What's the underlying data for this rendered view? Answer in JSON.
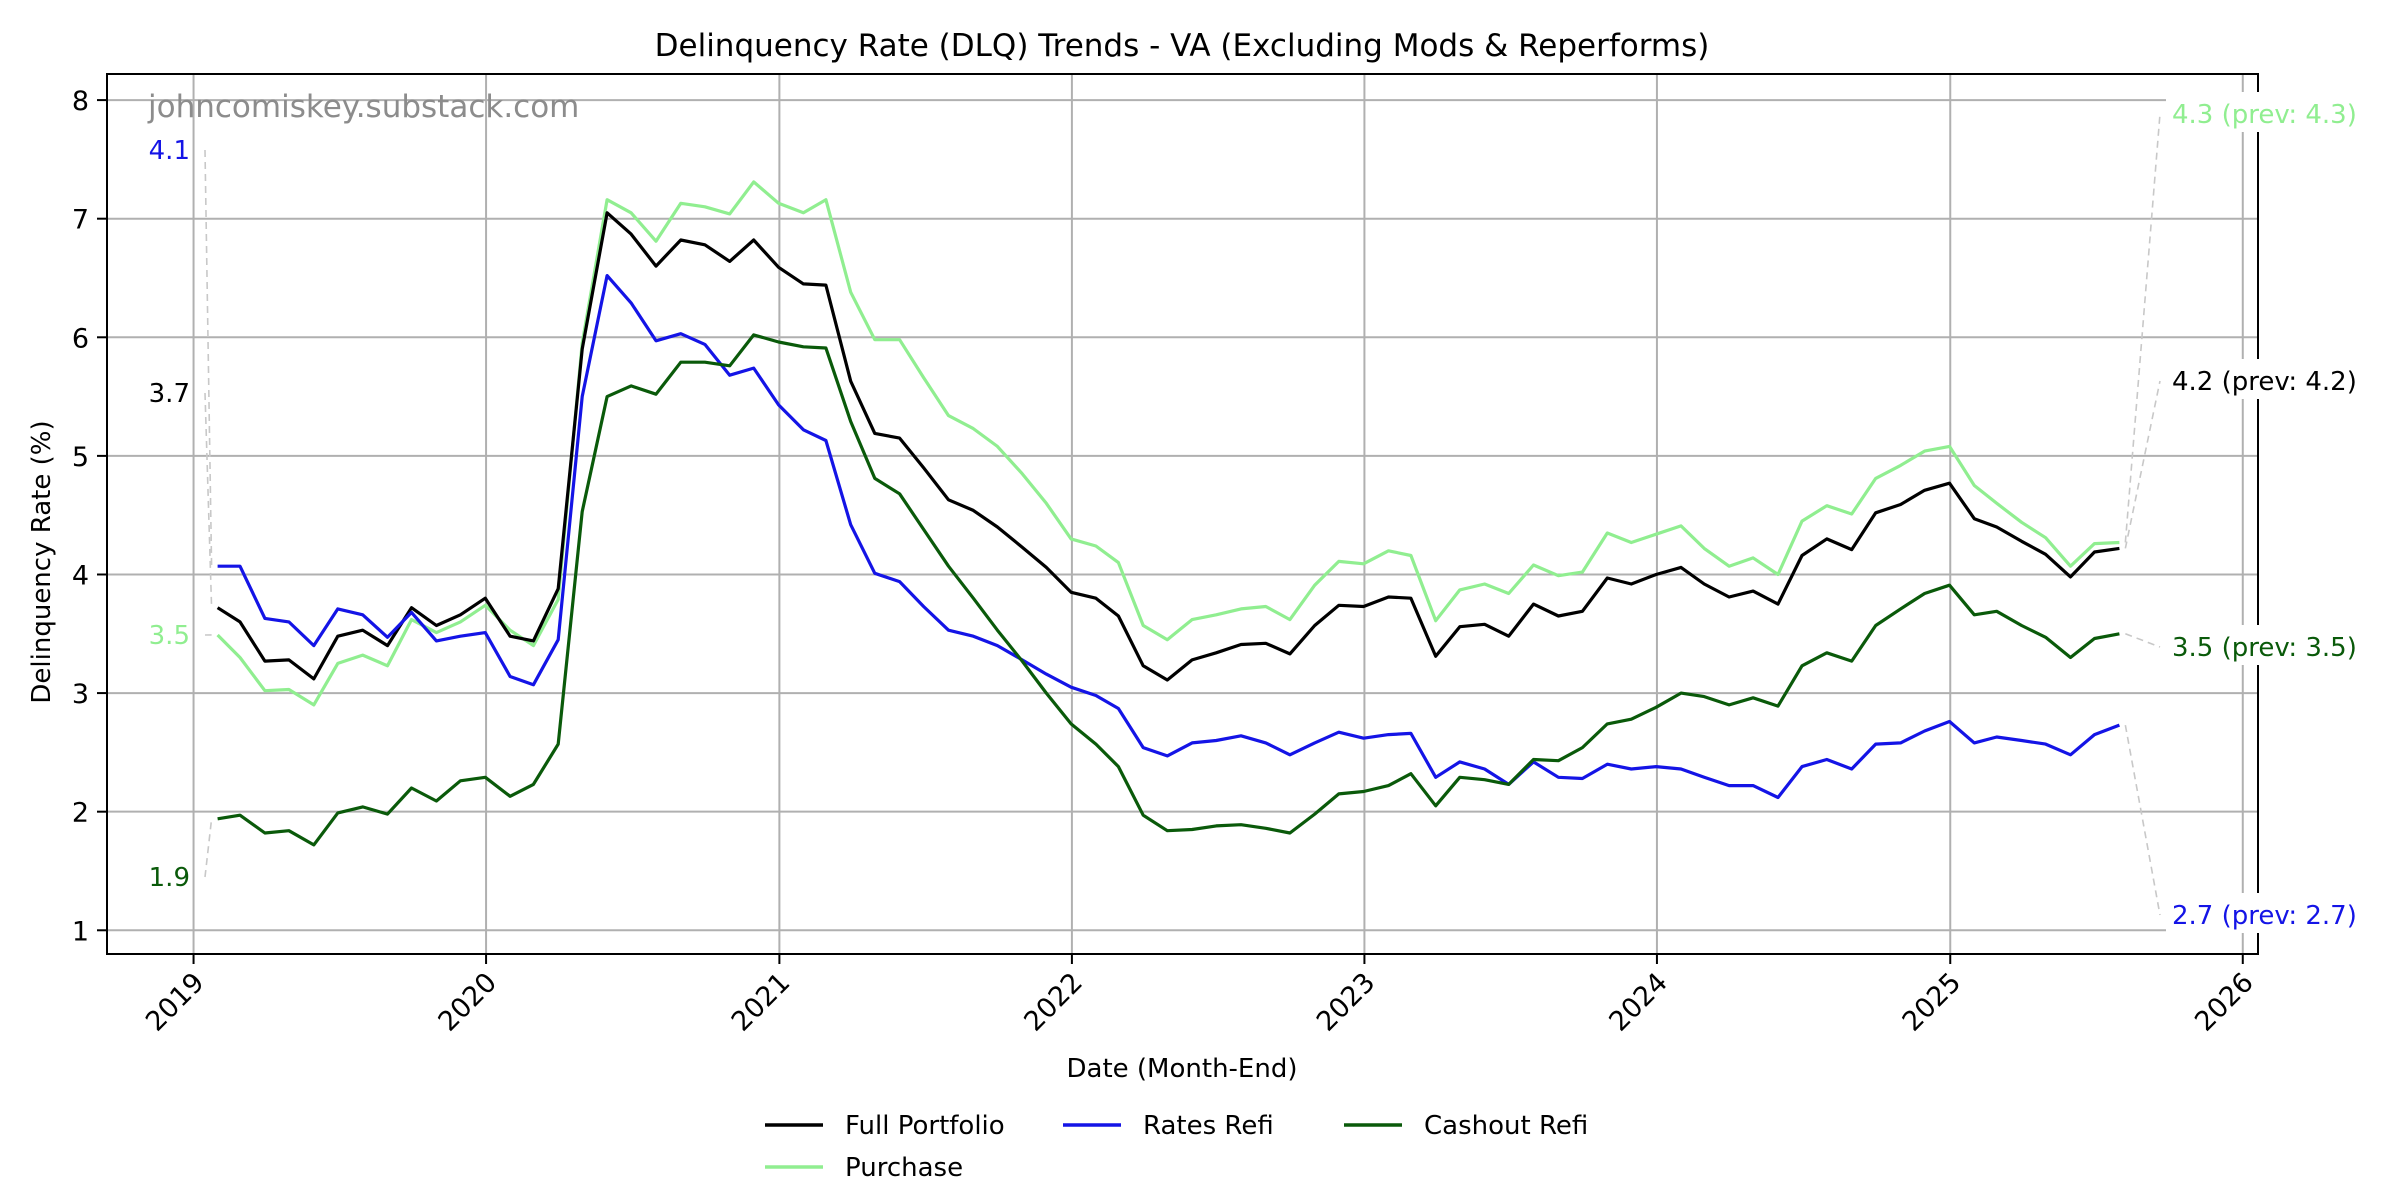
{
  "chart_data": {
    "type": "line",
    "title": "Delinquency Rate (DLQ) Trends - VA (Excluding Mods & Reperforms)",
    "xlabel": "Date (Month-End)",
    "ylabel": "Delinquency Rate (%)",
    "watermark": "johncomiskey.substack.com",
    "x_start": "2019-01-31",
    "x_end": "2025-07-31",
    "x_frequency": "month-end",
    "xlim": [
      "2018-09-15",
      "2026-01-20"
    ],
    "ylim": [
      0.8,
      8.22
    ],
    "xticks": [
      "2019",
      "2020",
      "2021",
      "2022",
      "2023",
      "2024",
      "2025",
      "2026"
    ],
    "yticks": [
      1,
      2,
      3,
      4,
      5,
      6,
      7,
      8
    ],
    "grid": true,
    "legend": {
      "placement": "bottom-center",
      "entries": [
        "Full Portfolio",
        "Rates Refi",
        "Cashout Refi",
        "Purchase"
      ]
    },
    "series": [
      {
        "name": "Full Portfolio",
        "color": "#000000",
        "start_label": "3.7",
        "end_label": "4.2 (prev: 4.2)",
        "values": [
          3.72,
          3.6,
          3.27,
          3.28,
          3.12,
          3.48,
          3.53,
          3.4,
          3.72,
          3.57,
          3.66,
          3.8,
          3.48,
          3.44,
          3.88,
          5.9,
          7.05,
          6.87,
          6.6,
          6.82,
          6.78,
          6.64,
          6.82,
          6.59,
          6.45,
          6.44,
          5.63,
          5.19,
          5.15,
          4.9,
          4.63,
          4.54,
          4.4,
          4.23,
          4.06,
          3.85,
          3.8,
          3.65,
          3.23,
          3.11,
          3.28,
          3.34,
          3.41,
          3.42,
          3.33,
          3.57,
          3.74,
          3.73,
          3.81,
          3.8,
          3.31,
          3.56,
          3.58,
          3.48,
          3.75,
          3.65,
          3.69,
          3.97,
          3.92,
          4.0,
          4.06,
          3.92,
          3.81,
          3.86,
          3.75,
          4.16,
          4.3,
          4.21,
          4.52,
          4.59,
          4.71,
          4.77,
          4.47,
          4.4,
          4.28,
          4.17,
          3.98,
          4.19,
          4.22
        ]
      },
      {
        "name": "Rates Refi",
        "color": "#1414e6",
        "start_label": "4.1",
        "end_label": "2.7 (prev: 2.7)",
        "values": [
          4.07,
          4.07,
          3.63,
          3.6,
          3.4,
          3.71,
          3.66,
          3.47,
          3.68,
          3.44,
          3.48,
          3.51,
          3.14,
          3.07,
          3.45,
          5.5,
          6.52,
          6.29,
          5.97,
          6.03,
          5.94,
          5.68,
          5.74,
          5.43,
          5.22,
          5.13,
          4.42,
          4.01,
          3.94,
          3.73,
          3.53,
          3.48,
          3.4,
          3.28,
          3.16,
          3.05,
          2.98,
          2.87,
          2.54,
          2.47,
          2.58,
          2.6,
          2.64,
          2.58,
          2.48,
          2.58,
          2.67,
          2.62,
          2.65,
          2.66,
          2.29,
          2.42,
          2.36,
          2.23,
          2.42,
          2.29,
          2.28,
          2.4,
          2.36,
          2.38,
          2.36,
          2.29,
          2.22,
          2.22,
          2.12,
          2.38,
          2.44,
          2.36,
          2.57,
          2.58,
          2.68,
          2.76,
          2.58,
          2.63,
          2.6,
          2.57,
          2.48,
          2.65,
          2.73
        ]
      },
      {
        "name": "Cashout Refi",
        "color": "#0a5a0a",
        "start_label": "1.9",
        "end_label": "3.5 (prev: 3.5)",
        "values": [
          1.94,
          1.97,
          1.82,
          1.84,
          1.72,
          1.99,
          2.04,
          1.98,
          2.2,
          2.09,
          2.26,
          2.29,
          2.13,
          2.23,
          2.57,
          4.53,
          5.5,
          5.59,
          5.52,
          5.79,
          5.79,
          5.76,
          6.02,
          5.96,
          5.92,
          5.91,
          5.29,
          4.81,
          4.68,
          4.38,
          4.07,
          3.8,
          3.53,
          3.27,
          3.0,
          2.74,
          2.57,
          2.38,
          1.97,
          1.84,
          1.85,
          1.88,
          1.89,
          1.86,
          1.82,
          1.98,
          2.15,
          2.17,
          2.22,
          2.32,
          2.05,
          2.29,
          2.27,
          2.23,
          2.44,
          2.43,
          2.54,
          2.74,
          2.78,
          2.88,
          3.0,
          2.97,
          2.9,
          2.96,
          2.89,
          3.23,
          3.34,
          3.27,
          3.57,
          3.71,
          3.84,
          3.91,
          3.66,
          3.69,
          3.57,
          3.47,
          3.3,
          3.46,
          3.5
        ]
      },
      {
        "name": "Purchase",
        "color": "#90ee90",
        "start_label": "3.5",
        "end_label": "4.3 (prev: 4.3)",
        "values": [
          3.49,
          3.3,
          3.02,
          3.03,
          2.9,
          3.25,
          3.32,
          3.23,
          3.62,
          3.51,
          3.6,
          3.74,
          3.53,
          3.4,
          3.79,
          5.95,
          7.16,
          7.05,
          6.81,
          7.13,
          7.1,
          7.04,
          7.31,
          7.13,
          7.05,
          7.16,
          6.38,
          5.98,
          5.98,
          5.66,
          5.34,
          5.23,
          5.08,
          4.85,
          4.6,
          4.3,
          4.24,
          4.1,
          3.57,
          3.45,
          3.62,
          3.66,
          3.71,
          3.73,
          3.62,
          3.91,
          4.11,
          4.09,
          4.2,
          4.16,
          3.61,
          3.87,
          3.92,
          3.84,
          4.08,
          3.99,
          4.02,
          4.35,
          4.27,
          4.34,
          4.41,
          4.22,
          4.07,
          4.14,
          4.0,
          4.45,
          4.58,
          4.51,
          4.81,
          4.92,
          5.04,
          5.08,
          4.75,
          4.6,
          4.44,
          4.31,
          4.07,
          4.26,
          4.27
        ]
      }
    ]
  }
}
